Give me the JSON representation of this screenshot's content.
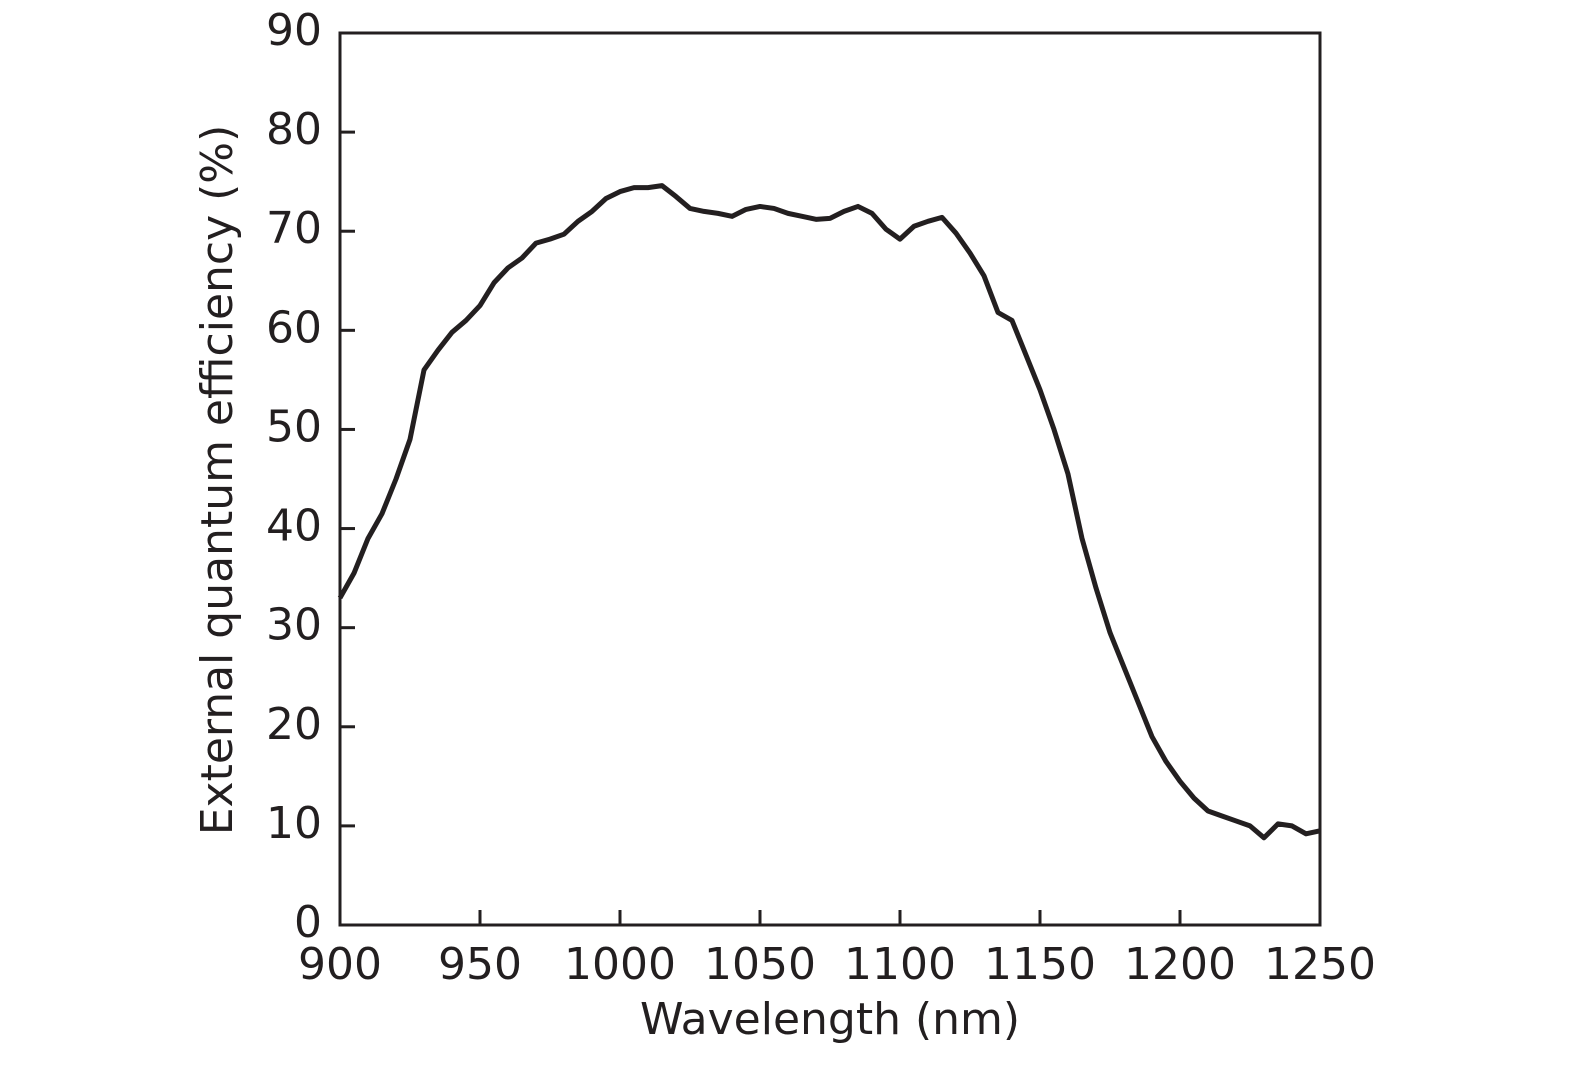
{
  "chart_data": {
    "type": "line",
    "x_label": "Wavelength (nm)",
    "y_label": "External quantum efficiency (%)",
    "x": [
      900,
      905,
      910,
      915,
      920,
      925,
      930,
      935,
      940,
      945,
      950,
      955,
      960,
      965,
      970,
      975,
      980,
      985,
      990,
      995,
      1000,
      1005,
      1010,
      1015,
      1020,
      1025,
      1030,
      1035,
      1040,
      1045,
      1050,
      1055,
      1060,
      1065,
      1070,
      1075,
      1080,
      1085,
      1090,
      1095,
      1100,
      1105,
      1110,
      1115,
      1120,
      1125,
      1130,
      1135,
      1140,
      1145,
      1150,
      1155,
      1160,
      1165,
      1170,
      1175,
      1180,
      1185,
      1190,
      1195,
      1200,
      1205,
      1210,
      1215,
      1220,
      1225,
      1230,
      1235,
      1240,
      1245,
      1250
    ],
    "values": [
      33,
      35.5,
      39,
      41.5,
      45,
      49,
      56,
      58,
      59.8,
      61,
      62.5,
      64.8,
      66.3,
      67.3,
      68.8,
      69.2,
      69.7,
      71,
      72,
      73.3,
      74,
      74.4,
      74.4,
      74.6,
      73.5,
      72.3,
      72,
      71.8,
      71.5,
      72.2,
      72.5,
      72.3,
      71.8,
      71.5,
      71.2,
      71.3,
      72,
      72.5,
      71.8,
      70.2,
      69.2,
      70.5,
      71,
      71.4,
      69.8,
      67.8,
      65.5,
      61.8,
      61,
      57.5,
      54,
      50,
      45.5,
      39,
      34,
      29.5,
      26,
      22.5,
      19,
      16.5,
      14.5,
      12.8,
      11.5,
      11,
      10.5,
      10,
      8.8,
      10.2,
      10,
      9.2,
      9.5
    ],
    "color": "#231f20",
    "xlim": [
      900,
      1250
    ],
    "xticks": [
      900,
      950,
      1000,
      1050,
      1100,
      1150,
      1200,
      1250
    ],
    "ylim": [
      0,
      90
    ],
    "yticks": [
      0,
      10,
      20,
      30,
      40,
      50,
      60,
      70,
      80,
      90
    ]
  }
}
